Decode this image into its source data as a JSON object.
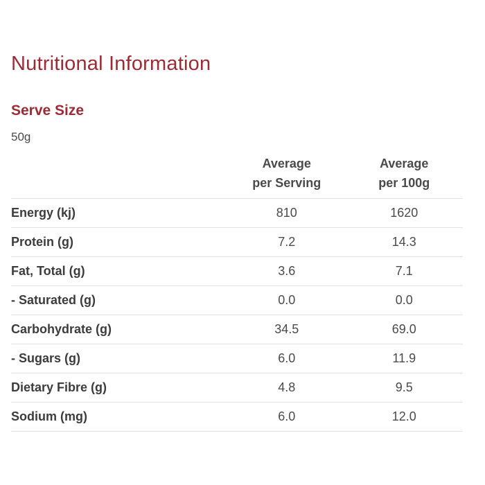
{
  "title": "Nutritional Information",
  "serve": {
    "heading": "Serve Size",
    "value": "50g"
  },
  "table": {
    "headers": {
      "per_serving_line1": "Average",
      "per_serving_line2": "per Serving",
      "per_100g_line1": "Average",
      "per_100g_line2": "per 100g"
    },
    "rows": [
      {
        "name": "Energy (kj)",
        "per_serving": "810",
        "per_100g": "1620"
      },
      {
        "name": "Protein (g)",
        "per_serving": "7.2",
        "per_100g": "14.3"
      },
      {
        "name": "Fat, Total (g)",
        "per_serving": "3.6",
        "per_100g": "7.1"
      },
      {
        "name": "- Saturated (g)",
        "per_serving": "0.0",
        "per_100g": "0.0"
      },
      {
        "name": "Carbohydrate (g)",
        "per_serving": "34.5",
        "per_100g": "69.0"
      },
      {
        "name": "- Sugars (g)",
        "per_serving": "6.0",
        "per_100g": "11.9"
      },
      {
        "name": "Dietary Fibre (g)",
        "per_serving": "4.8",
        "per_100g": "9.5"
      },
      {
        "name": "Sodium (mg)",
        "per_serving": "6.0",
        "per_100g": "12.0"
      }
    ]
  },
  "colors": {
    "accent": "#9b2b35",
    "text": "#3c3c3c",
    "divider": "#e2e2e2"
  }
}
